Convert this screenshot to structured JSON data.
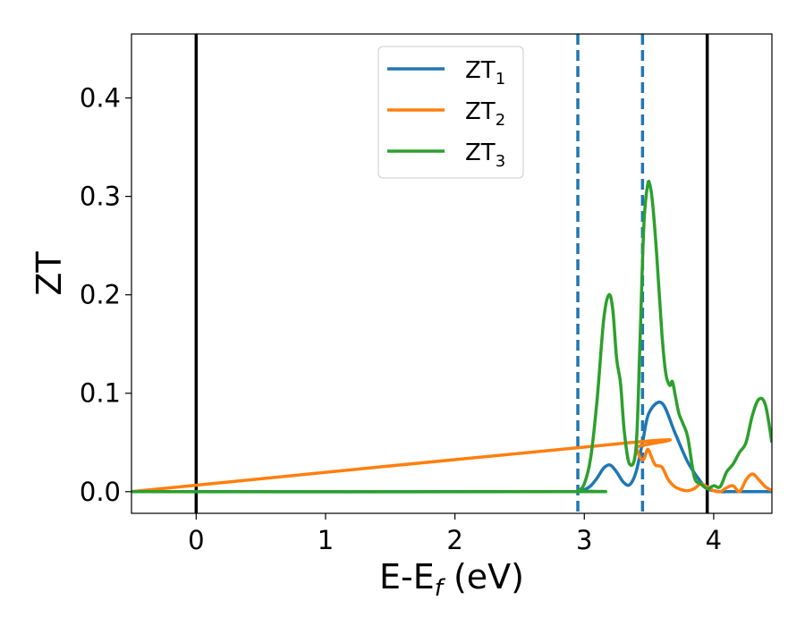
{
  "chart_data": {
    "type": "line",
    "xlabel": {
      "main": "E-E",
      "sub": "f",
      "suffix": " (eV)"
    },
    "ylabel": "ZT",
    "xlim": [
      -0.5,
      4.45
    ],
    "ylim": [
      -0.022,
      0.465
    ],
    "x_ticks": [
      0,
      1,
      2,
      3,
      4
    ],
    "y_ticks": [
      0.0,
      0.1,
      0.2,
      0.3,
      0.4
    ],
    "x_tick_labels": [
      "0",
      "1",
      "2",
      "3",
      "4"
    ],
    "y_tick_labels": [
      "0.0",
      "0.1",
      "0.2",
      "0.3",
      "0.4"
    ],
    "grid": false,
    "legend_position": "top-center",
    "vlines": [
      {
        "x": 0.0,
        "style": "solid",
        "color": "#000000"
      },
      {
        "x": 2.95,
        "style": "dashed",
        "color": "#1f77b4"
      },
      {
        "x": 3.45,
        "style": "dashed",
        "color": "#1f77b4"
      },
      {
        "x": 3.95,
        "style": "solid",
        "color": "#000000"
      }
    ],
    "series": [
      {
        "name": "ZT",
        "sub": "1",
        "color": "#1f77b4",
        "x": [
          -0.5,
          2.9,
          2.95,
          3.0,
          3.05,
          3.1,
          3.15,
          3.2,
          3.25,
          3.3,
          3.35,
          3.4,
          3.45,
          3.5,
          3.6,
          3.7,
          3.8,
          3.9,
          3.95,
          4.0,
          4.05,
          4.1,
          4.15,
          4.2,
          4.25,
          4.3,
          4.35,
          4.4,
          4.45
        ],
        "y": [
          0,
          0,
          0.0005,
          0.002,
          0.006,
          0.014,
          0.024,
          0.027,
          0.02,
          0.01,
          0.007,
          0.02,
          0.05,
          0.08,
          0.09,
          0.06,
          0.03,
          0.01,
          0.003,
          0.001,
          0.0,
          0.0,
          0.0,
          0.0,
          0.0,
          0.0,
          0.0,
          0.0,
          0.0
        ]
      },
      {
        "name": "ZT",
        "sub": "2",
        "color": "#ff7f0e",
        "x": [
          -0.5,
          3.37,
          3.4,
          3.43,
          3.46,
          3.49,
          3.52,
          3.55,
          3.6,
          3.65,
          3.7,
          3.75,
          3.8,
          3.85,
          3.9,
          3.95,
          4.0,
          4.05,
          4.1,
          4.15,
          4.2,
          4.25,
          4.3,
          4.35,
          4.4,
          4.45
        ],
        "y": [
          0,
          0.05,
          0.045,
          0.035,
          0.033,
          0.043,
          0.035,
          0.027,
          0.025,
          0.012,
          0.005,
          0.002,
          0.001,
          0.003,
          0.008,
          0.005,
          0.001,
          0.0,
          0.004,
          0.006,
          0.0,
          0.012,
          0.018,
          0.012,
          0.005,
          0.001
        ]
      },
      {
        "name": "ZT",
        "sub": "3",
        "color": "#2ca02c",
        "x": [
          -0.5,
          2.9,
          2.95,
          3.0,
          3.05,
          3.1,
          3.15,
          3.19,
          3.22,
          3.25,
          3.28,
          3.31,
          3.35,
          3.4,
          3.43,
          3.46,
          3.49,
          3.51,
          3.53,
          3.56,
          3.6,
          3.63,
          3.66,
          3.68,
          3.7,
          3.73,
          3.76,
          3.8,
          3.85,
          3.9,
          3.95,
          4.0,
          4.05,
          4.1,
          4.15,
          4.2,
          4.25,
          4.3,
          4.35,
          4.4,
          4.45
        ],
        "y": [
          0,
          0,
          0.001,
          0.008,
          0.035,
          0.095,
          0.175,
          0.2,
          0.185,
          0.135,
          0.11,
          0.06,
          0.028,
          0.045,
          0.15,
          0.27,
          0.312,
          0.31,
          0.29,
          0.24,
          0.16,
          0.12,
          0.108,
          0.112,
          0.1,
          0.08,
          0.07,
          0.055,
          0.015,
          0.008,
          0.003,
          0.006,
          0.005,
          0.02,
          0.028,
          0.04,
          0.05,
          0.078,
          0.094,
          0.088,
          0.05
        ]
      }
    ]
  }
}
